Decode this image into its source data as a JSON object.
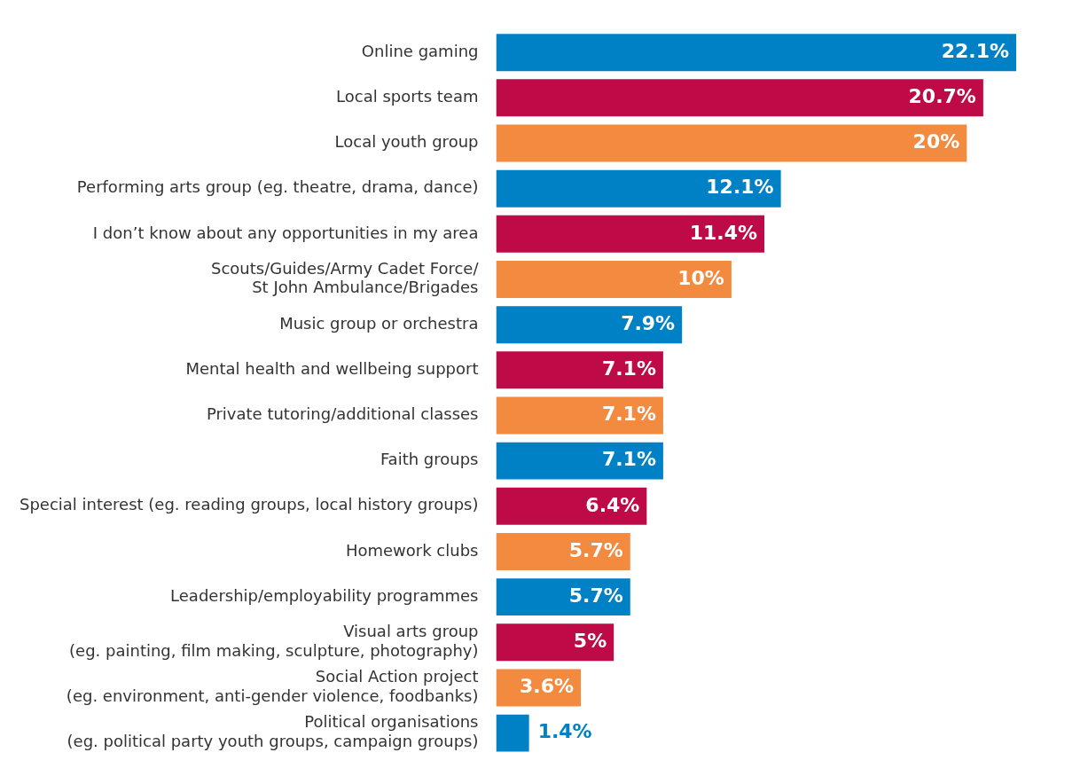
{
  "chart_data": {
    "type": "bar",
    "orientation": "horizontal",
    "categories": [
      "Online gaming",
      "Local sports team",
      "Local youth group",
      "Performing arts group (eg. theatre, drama, dance)",
      "I don’t know about any opportunities in my area",
      "Scouts/Guides/Army Cadet Force/\nSt John Ambulance/Brigades",
      "Music group or orchestra",
      "Mental health and wellbeing support",
      "Private tutoring/additional classes",
      "Faith groups",
      "Special interest (eg. reading groups, local history groups)",
      "Homework clubs",
      "Leadership/employability programmes",
      "Visual arts group\n(eg. painting, film making, sculpture, photography)",
      "Social Action project\n(eg. environment, anti-gender violence, foodbanks)",
      "Political organisations\n(eg. political party youth groups, campaign groups)"
    ],
    "values": [
      22.1,
      20.7,
      20,
      12.1,
      11.4,
      10,
      7.9,
      7.1,
      7.1,
      7.1,
      6.4,
      5.7,
      5.7,
      5,
      3.6,
      1.4
    ],
    "colors": [
      "#0081c6",
      "#be0a46",
      "#f28a40",
      "#0081c6",
      "#be0a46",
      "#f28a40",
      "#0081c6",
      "#be0a46",
      "#f28a40",
      "#0081c6",
      "#be0a46",
      "#f28a40",
      "#0081c6",
      "#be0a46",
      "#f28a40",
      "#0081c6"
    ],
    "value_labels": [
      "22.1%",
      "20.7%",
      "20%",
      "12.1%",
      "11.4%",
      "10%",
      "7.9%",
      "7.1%",
      "7.1%",
      "7.1%",
      "6.4%",
      "5.7%",
      "5.7%",
      "5%",
      "3.6%",
      "1.4%"
    ],
    "grid": false,
    "legend": false
  }
}
